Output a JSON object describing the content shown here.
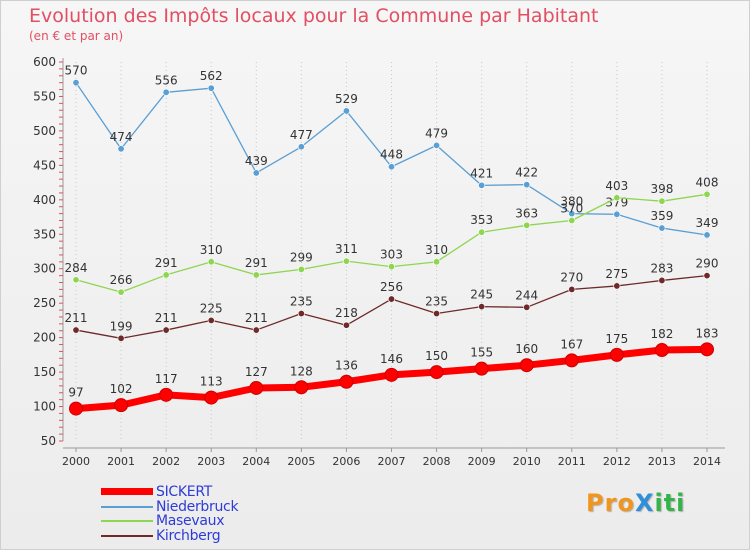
{
  "header": {
    "title": "Evolution des Impôts locaux pour la Commune par Habitant",
    "subtitle": "(en € et par an)"
  },
  "logo": {
    "text": "ProXiti"
  },
  "chart_data": {
    "type": "line",
    "title": "Evolution des Impôts locaux pour la Commune par Habitant",
    "subtitle": "(en € et par an)",
    "xlabel": "",
    "ylabel": "",
    "x": [
      "2000",
      "2001",
      "2002",
      "2003",
      "2004",
      "2005",
      "2006",
      "2007",
      "2008",
      "2009",
      "2010",
      "2011",
      "2012",
      "2013",
      "2014"
    ],
    "y_ticks": [
      50,
      100,
      150,
      200,
      250,
      300,
      350,
      400,
      450,
      500,
      550,
      600
    ],
    "ylim": [
      50,
      600
    ],
    "grid": "vertical dotted",
    "legend_position": "bottom-left",
    "series": [
      {
        "name": "SICKERT",
        "color": "#ff0000",
        "values": [
          97,
          102,
          117,
          113,
          127,
          128,
          136,
          146,
          150,
          155,
          160,
          167,
          175,
          182,
          183
        ]
      },
      {
        "name": "Niederbruck",
        "color": "#5a9fd4",
        "values": [
          570,
          474,
          556,
          562,
          439,
          477,
          529,
          448,
          479,
          421,
          422,
          380,
          379,
          359,
          349
        ]
      },
      {
        "name": "Masevaux",
        "color": "#8ed64f",
        "values": [
          284,
          266,
          291,
          310,
          291,
          299,
          311,
          303,
          310,
          353,
          363,
          370,
          403,
          398,
          408
        ]
      },
      {
        "name": "Kirchberg",
        "color": "#6e2a2a",
        "values": [
          211,
          199,
          211,
          225,
          211,
          235,
          218,
          256,
          235,
          245,
          244,
          270,
          275,
          283,
          290
        ]
      }
    ]
  }
}
